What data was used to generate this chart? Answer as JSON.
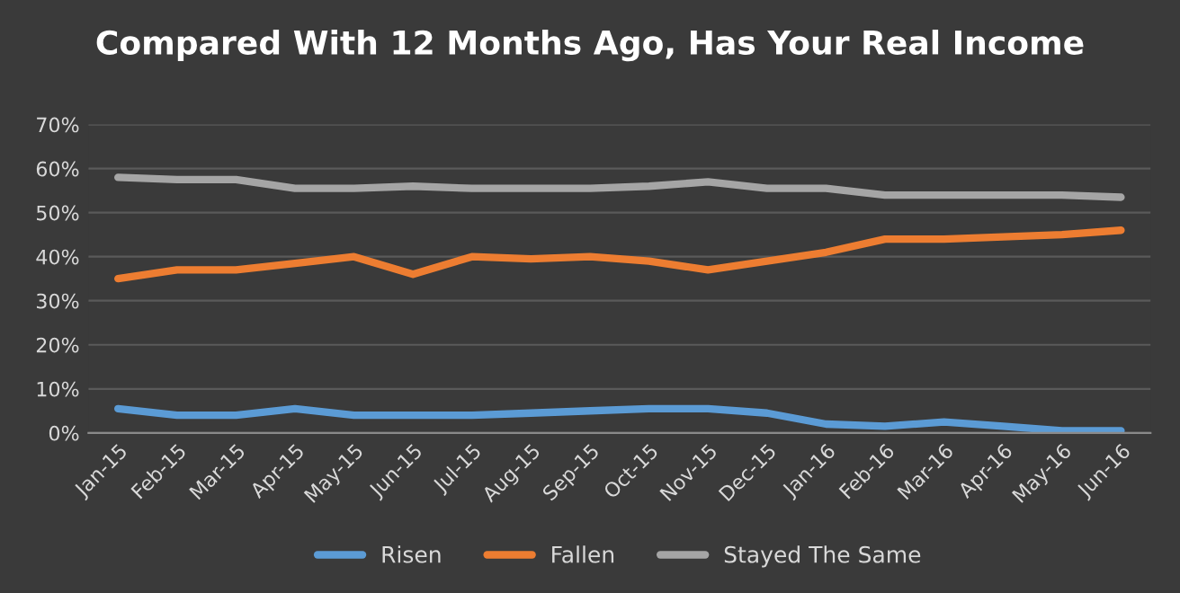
{
  "chart_data": {
    "type": "line",
    "title": "Compared With 12 Months Ago, Has Your Real Income",
    "categories": [
      "Jan-15",
      "Feb-15",
      "Mar-15",
      "Apr-15",
      "May-15",
      "Jun-15",
      "Jul-15",
      "Aug-15",
      "Sep-15",
      "Oct-15",
      "Nov-15",
      "Dec-15",
      "Jan-16",
      "Feb-16",
      "Mar-16",
      "Apr-16",
      "May-16",
      "Jun-16"
    ],
    "series": [
      {
        "name": "Risen",
        "color": "#5b9bd5",
        "values": [
          5.5,
          4,
          4,
          5.5,
          4,
          4,
          4,
          4.5,
          5,
          5.5,
          5.5,
          4.5,
          2,
          1.5,
          2.5,
          1.5,
          0.5,
          0.5
        ]
      },
      {
        "name": "Fallen",
        "color": "#ed7d31",
        "values": [
          35,
          37,
          37,
          38.5,
          40,
          36,
          40,
          39.5,
          40,
          39,
          37,
          39,
          41,
          44,
          44,
          44.5,
          45,
          46
        ]
      },
      {
        "name": "Stayed The Same",
        "color": "#a5a5a5",
        "values": [
          58,
          57.5,
          57.5,
          55.5,
          55.5,
          56,
          55.5,
          55.5,
          55.5,
          56,
          57,
          55.5,
          55.5,
          54,
          54,
          54,
          54,
          53.5
        ]
      }
    ],
    "ylim": [
      0,
      70
    ],
    "yticks": [
      {
        "value": 0,
        "label": "0%"
      },
      {
        "value": 10,
        "label": "10%"
      },
      {
        "value": 20,
        "label": "20%"
      },
      {
        "value": 30,
        "label": "30%"
      },
      {
        "value": 40,
        "label": "40%"
      },
      {
        "value": 50,
        "label": "50%"
      },
      {
        "value": 60,
        "label": "60%"
      },
      {
        "value": 70,
        "label": "70%"
      }
    ],
    "grid": "y",
    "legend": "bottom",
    "marker": "none",
    "line_style": "solid"
  }
}
